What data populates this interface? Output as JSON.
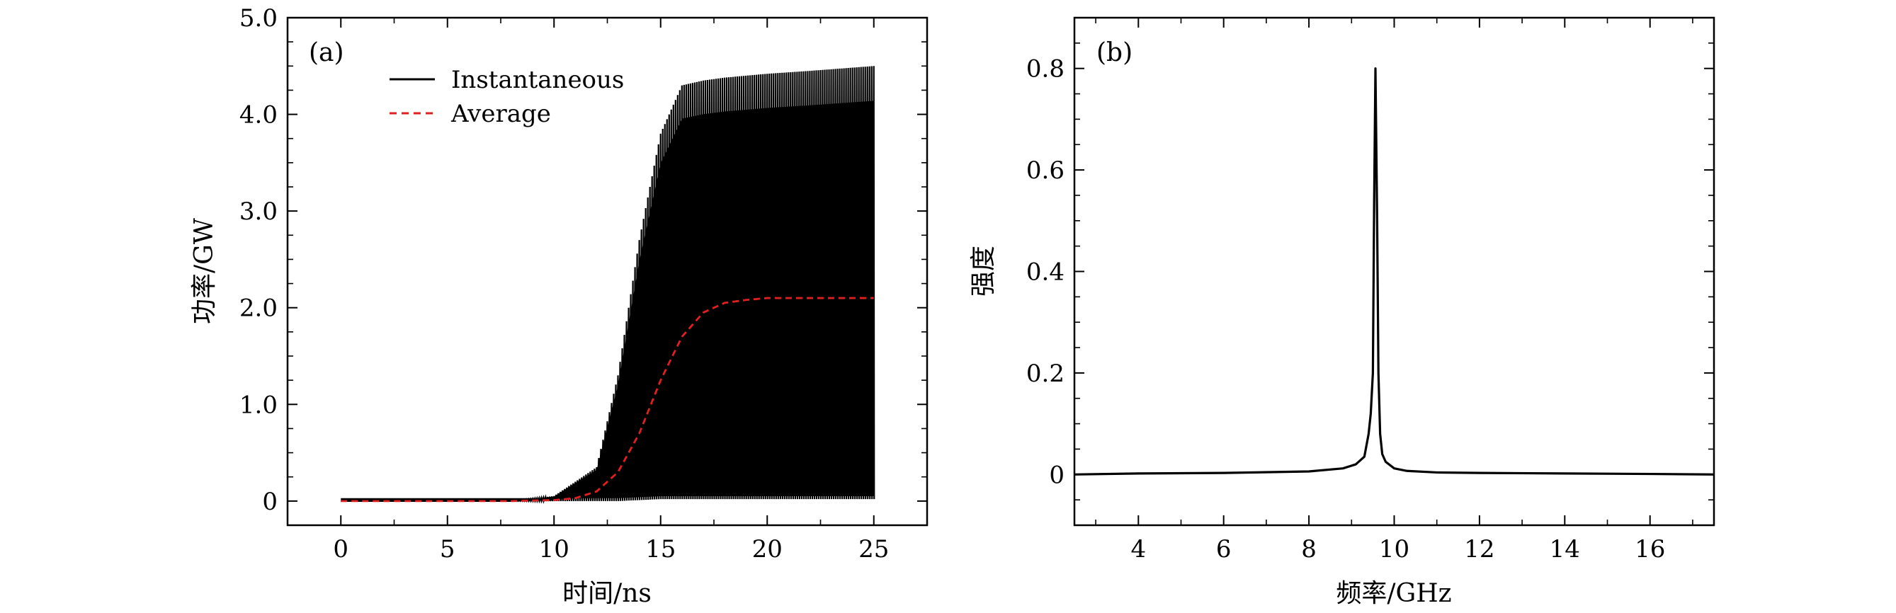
{
  "chart_data": [
    {
      "type": "line",
      "panel_label": "(a)",
      "xlabel": "时间/ns",
      "ylabel": "功率/GW",
      "xlim": [
        -2.5,
        27.5
      ],
      "ylim": [
        -0.25,
        5.0
      ],
      "x_ticks": [
        0,
        5,
        10,
        15,
        20,
        25
      ],
      "y_ticks": [
        0,
        1.0,
        2.0,
        3.0,
        4.0,
        5.0
      ],
      "y_tick_labels": [
        "0",
        "1.0",
        "2.0",
        "3.0",
        "4.0",
        "5.0"
      ],
      "legend_position": "top-center",
      "series": [
        {
          "name": "Instantaneous",
          "color": "#000000",
          "style": "solid-oscillating",
          "min_values": [
            0,
            0,
            0,
            0,
            0,
            0.01,
            0.02,
            0.02,
            0.02,
            0.02,
            0.02,
            0.02,
            0.02
          ],
          "x": [
            0,
            8,
            10,
            12,
            13,
            14,
            15,
            16,
            17,
            18,
            20,
            22,
            25
          ],
          "max_values": [
            0,
            0,
            0.05,
            0.35,
            1.3,
            2.7,
            3.8,
            4.3,
            4.35,
            4.38,
            4.42,
            4.45,
            4.5
          ]
        },
        {
          "name": "Average",
          "color": "#e02020",
          "style": "dashed",
          "x": [
            0,
            8,
            10,
            11,
            12,
            13,
            14,
            15,
            16,
            17,
            18,
            19,
            20,
            22,
            25
          ],
          "values": [
            0,
            0,
            0.01,
            0.03,
            0.1,
            0.3,
            0.7,
            1.25,
            1.7,
            1.95,
            2.05,
            2.08,
            2.1,
            2.1,
            2.1
          ]
        }
      ]
    },
    {
      "type": "line",
      "panel_label": "(b)",
      "xlabel": "频率/GHz",
      "ylabel": "强度",
      "xlim": [
        2.5,
        17.5
      ],
      "ylim": [
        -0.1,
        0.9
      ],
      "x_ticks": [
        4,
        6,
        8,
        10,
        12,
        14,
        16
      ],
      "y_ticks": [
        0,
        0.2,
        0.4,
        0.6,
        0.8
      ],
      "y_tick_labels": [
        "0",
        "0.2",
        "0.4",
        "0.6",
        "0.8"
      ],
      "series": [
        {
          "color": "#000000",
          "x": [
            2.5,
            4,
            6,
            8,
            8.8,
            9.1,
            9.3,
            9.4,
            9.45,
            9.5,
            9.53,
            9.56,
            9.6,
            9.63,
            9.67,
            9.72,
            9.8,
            10.0,
            10.3,
            11,
            12,
            14,
            16,
            17.5
          ],
          "values": [
            0.0,
            0.002,
            0.003,
            0.006,
            0.012,
            0.02,
            0.035,
            0.08,
            0.12,
            0.2,
            0.54,
            0.8,
            0.5,
            0.2,
            0.08,
            0.04,
            0.025,
            0.012,
            0.007,
            0.004,
            0.003,
            0.002,
            0.001,
            0.0
          ]
        }
      ]
    }
  ]
}
